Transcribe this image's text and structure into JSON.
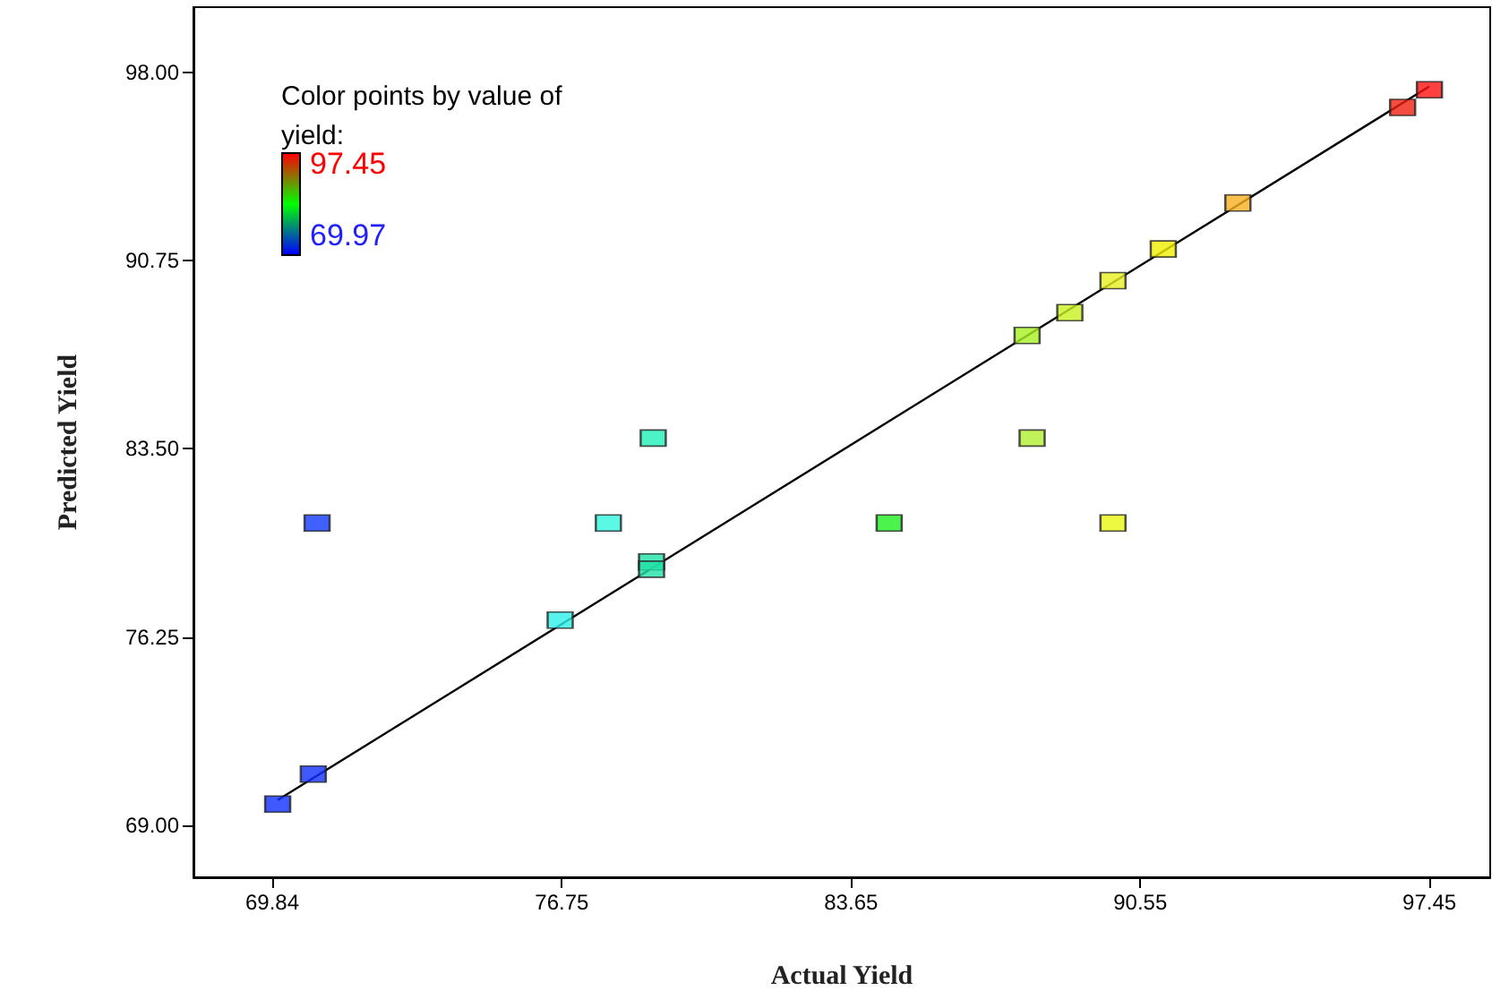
{
  "chart_data": {
    "type": "scatter",
    "xlabel": "Actual Yield",
    "ylabel": "Predicted Yield",
    "clabel": "Color points by value of yield:",
    "annotations": [
      "97.45",
      "69.97"
    ],
    "marker": "square",
    "grid": false,
    "xlim": [
      67.96,
      98.9
    ],
    "ylim": [
      67.0,
      100.5
    ],
    "xticks": [
      69.84,
      76.75,
      83.65,
      90.55,
      97.45
    ],
    "yticks": [
      {
        "value": 69,
        "label": "69.00"
      },
      {
        "value": 76.25,
        "label": "76.25"
      },
      {
        "value": 83.5,
        "label": "83.50"
      },
      {
        "value": 90.75,
        "label": "90.75"
      },
      {
        "value": 98,
        "label": "98.00"
      }
    ],
    "series": [
      {
        "colors": [
          "#1030ff",
          "#1030ff",
          "#1038ff",
          "#30f0e8",
          "#30f8e0",
          "#20f0b8",
          "#20e0a8",
          "#20e0a8",
          "#20f020",
          "#a8f020",
          "#b0f030",
          "#c8f020",
          "#e8f020",
          "#e8f810",
          "#f0f000",
          "#f8b020",
          "#f02010",
          "#ff1010"
        ],
        "x": [
          69.97,
          70.82,
          70.91,
          76.71,
          77.86,
          78.93,
          78.89,
          78.89,
          84.56,
          87.85,
          87.97,
          88.87,
          89.9,
          89.9,
          91.1,
          92.88,
          96.81,
          97.45
        ],
        "values": [
          69.82,
          70.97,
          80.64,
          76.9,
          80.64,
          83.91,
          79.14,
          78.86,
          80.64,
          87.86,
          83.91,
          88.74,
          89.97,
          80.64,
          91.19,
          92.96,
          96.64,
          97.32
        ]
      },
      {
        "type": "line",
        "color": "#000000",
        "marker": "none",
        "x": [
          69.97,
          97.45
        ],
        "values": [
          69.97,
          97.45
        ]
      }
    ]
  }
}
